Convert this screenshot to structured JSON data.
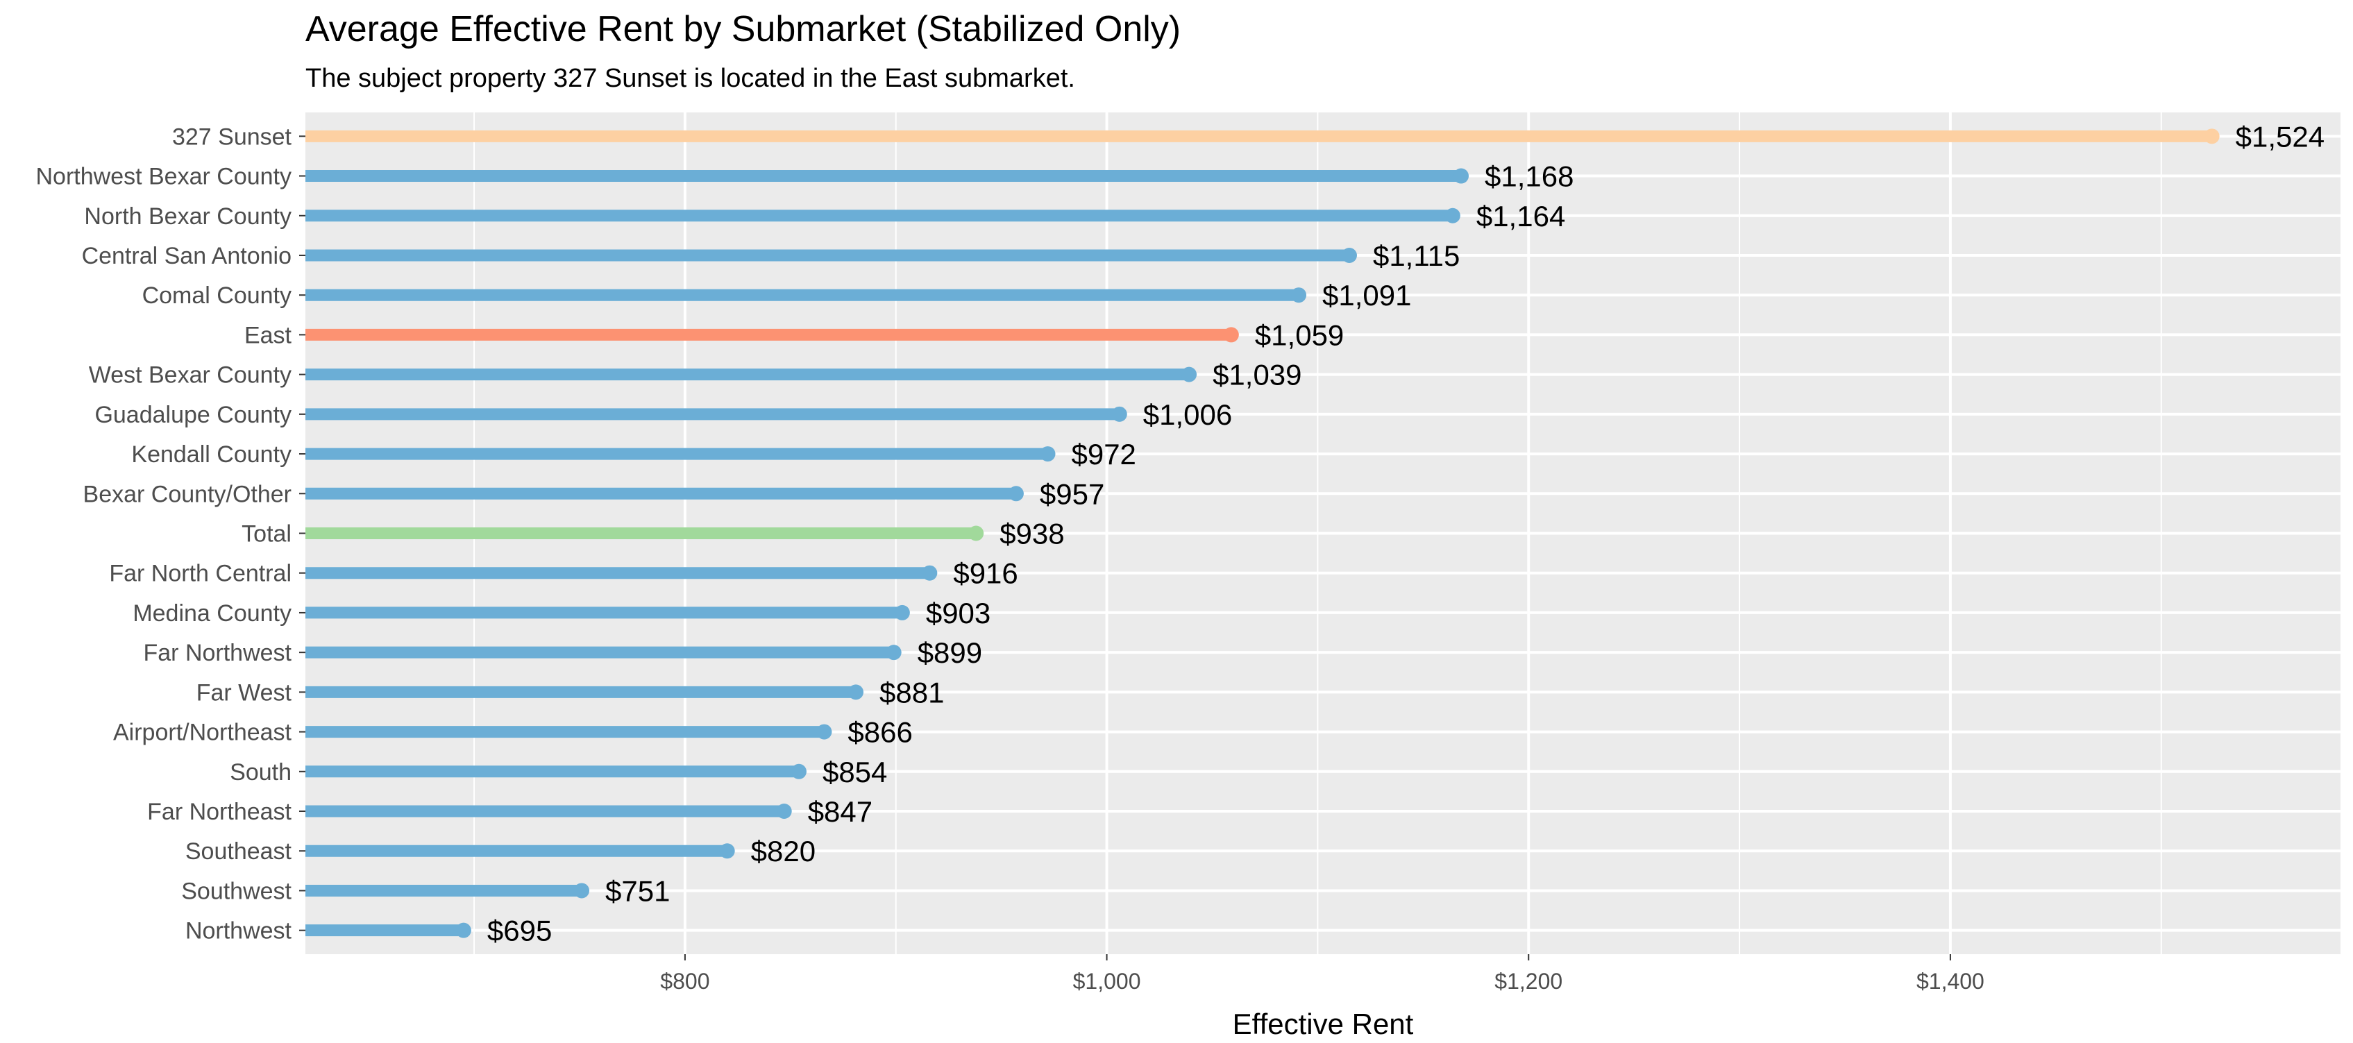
{
  "chart_data": {
    "type": "bar",
    "title": "Average Effective Rent by Submarket (Stabilized Only)",
    "subtitle": "The subject property 327 Sunset is located in the East submarket.",
    "xlabel": "Effective Rent",
    "ylabel": "",
    "orientation": "horizontal",
    "style": "lollipop",
    "grid": true,
    "xlim": [
      620,
      1585
    ],
    "x_ticks": [
      800,
      1000,
      1200,
      1400
    ],
    "x_tick_labels": [
      "$800",
      "$1,000",
      "$1,200",
      "$1,400"
    ],
    "categories": [
      "327 Sunset",
      "Northwest Bexar County",
      "North Bexar County",
      "Central San Antonio",
      "Comal County",
      "East",
      "West Bexar County",
      "Guadalupe County",
      "Kendall County",
      "Bexar County/Other",
      "Total",
      "Far North Central",
      "Medina County",
      "Far Northwest",
      "Far West",
      "Airport/Northeast",
      "South",
      "Far Northeast",
      "Southeast",
      "Southwest",
      "Northwest"
    ],
    "values": [
      1524,
      1168,
      1164,
      1115,
      1091,
      1059,
      1039,
      1006,
      972,
      957,
      938,
      916,
      903,
      899,
      881,
      866,
      854,
      847,
      820,
      751,
      695
    ],
    "value_labels": [
      "$1,524",
      "$1,168",
      "$1,164",
      "$1,115",
      "$1,091",
      "$1,059",
      "$1,039",
      "$1,006",
      "$972",
      "$957",
      "$938",
      "$916",
      "$903",
      "$899",
      "$881",
      "$866",
      "$854",
      "$847",
      "$820",
      "$751",
      "$695"
    ],
    "bar_colors": [
      "#fdd0a2",
      "#6baed6",
      "#6baed6",
      "#6baed6",
      "#6baed6",
      "#fc9272",
      "#6baed6",
      "#6baed6",
      "#6baed6",
      "#6baed6",
      "#a1d99b",
      "#6baed6",
      "#6baed6",
      "#6baed6",
      "#6baed6",
      "#6baed6",
      "#6baed6",
      "#6baed6",
      "#6baed6",
      "#6baed6",
      "#6baed6"
    ]
  },
  "colors": {
    "panel_background": "#ebebeb",
    "grid_line": "#ffffff",
    "axis_text": "#4d4d4d"
  }
}
